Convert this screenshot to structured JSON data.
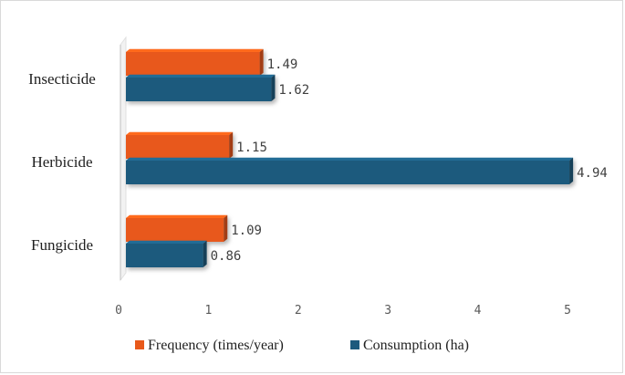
{
  "chart_data": {
    "type": "bar",
    "orientation": "horizontal",
    "style": "3d",
    "title": "",
    "xlabel": "",
    "ylabel": "",
    "categories": [
      "Insecticide",
      "Herbicide",
      "Fungicide"
    ],
    "series": [
      {
        "name": "Frequency (times/year)",
        "values": [
          1.49,
          1.15,
          1.09
        ],
        "color": "#e8591a"
      },
      {
        "name": "Consumption (ha)",
        "values": [
          1.62,
          4.94,
          0.86
        ],
        "color": "#1c5a7d"
      }
    ],
    "data_labels": {
      "Frequency (times/year)": [
        "1.49",
        "1.15",
        "1.09"
      ],
      "Consumption (ha)": [
        "1.62",
        "4.94",
        "0.86"
      ]
    },
    "xlim": [
      0,
      5
    ],
    "xticks": [
      "0",
      "1",
      "2",
      "3",
      "4",
      "5"
    ],
    "grid": false,
    "legend_position": "bottom"
  }
}
